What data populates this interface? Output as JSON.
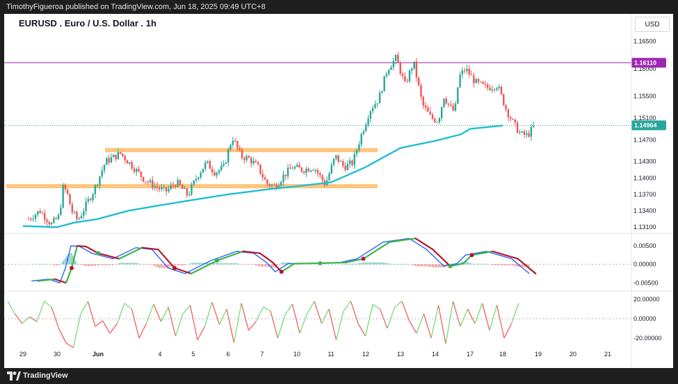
{
  "header": {
    "publisher_line": "TimothyFigueroa published on TradingView.com, Jun 18, 2025 09:49 UTC+8",
    "chart_title": "EURUSD . Euro / U.S. Dollar . 1h",
    "currency_button": "USD"
  },
  "footer": {
    "brand": "TradingView"
  },
  "colors": {
    "up": "#26a69a",
    "down": "#ef5350",
    "ma": "#1fbed3",
    "zone": "#ffc67d",
    "hline": "#9c27b0",
    "macd_line": "#2962ff",
    "signal_line": "#b2182b",
    "signal_up": "#3cb44b",
    "rsi_up": "#6bd96b",
    "rsi_down": "#ef5350"
  },
  "chart_data": [
    {
      "type": "candlestick",
      "title": "EURUSD . Euro / U.S. Dollar . 1h",
      "ylim": [
        1.13,
        1.1675
      ],
      "yticks": [
        "1.16500",
        "1.16000",
        "1.15500",
        "1.15100",
        "1.14700",
        "1.14300",
        "1.14000",
        "1.13700",
        "1.13400",
        "1.13100"
      ],
      "xticks": [
        "29",
        "30",
        "Jun",
        "4",
        "5",
        "6",
        "7",
        "10",
        "11",
        "12",
        "13",
        "14",
        "17",
        "18",
        "19",
        "20",
        "21"
      ],
      "price_labels": [
        {
          "value": "1.16110",
          "color": "#9c27b0"
        },
        {
          "value": "1.14964",
          "color": "#26a69a"
        }
      ],
      "horizontal_line": 1.1611,
      "current_price": 1.14964,
      "zones": [
        {
          "from": "Jun 2",
          "to": "Jun 11",
          "price": 1.1451
        },
        {
          "from": "May 29",
          "to": "Jun 11",
          "price": 1.1385
        }
      ],
      "close_path": [
        [
          "May 29",
          1.1325
        ],
        [
          "May 29",
          1.134
        ],
        [
          "May 29",
          1.1315
        ],
        [
          "May 30",
          1.133
        ],
        [
          "May 30",
          1.1385
        ],
        [
          "May 30",
          1.137
        ],
        [
          "May 30",
          1.134
        ],
        [
          "Jun 1",
          1.1322
        ],
        [
          "Jun 1",
          1.135
        ],
        [
          "Jun 1",
          1.1378
        ],
        [
          "Jun 2",
          1.143
        ],
        [
          "Jun 2",
          1.1445
        ],
        [
          "Jun 3",
          1.142
        ],
        [
          "Jun 3",
          1.1398
        ],
        [
          "Jun 3",
          1.1385
        ],
        [
          "Jun 4",
          1.1375
        ],
        [
          "Jun 4",
          1.1392
        ],
        [
          "Jun 4",
          1.1368
        ],
        [
          "Jun 5",
          1.1405
        ],
        [
          "Jun 5",
          1.1428
        ],
        [
          "Jun 5",
          1.141
        ],
        [
          "Jun 5",
          1.142
        ],
        [
          "Jun 6",
          1.1475
        ],
        [
          "Jun 6",
          1.144
        ],
        [
          "Jun 6",
          1.1435
        ],
        [
          "Jun 6",
          1.142
        ],
        [
          "Jun 7",
          1.139
        ],
        [
          "Jun 7",
          1.1385
        ],
        [
          "Jun 8",
          1.1405
        ],
        [
          "Jun 8",
          1.142
        ],
        [
          "Jun 10",
          1.1415
        ],
        [
          "Jun 10",
          1.142
        ],
        [
          "Jun 10",
          1.1388
        ],
        [
          "Jun 11",
          1.144
        ],
        [
          "Jun 11",
          1.142
        ],
        [
          "Jun 11",
          1.1428
        ],
        [
          "Jun 11",
          1.148
        ],
        [
          "Jun 12",
          1.1525
        ],
        [
          "Jun 12",
          1.1545
        ],
        [
          "Jun 12",
          1.16
        ],
        [
          "Jun 12",
          1.162
        ],
        [
          "Jun 13",
          1.157
        ],
        [
          "Jun 13",
          1.1612
        ],
        [
          "Jun 13",
          1.1535
        ],
        [
          "Jun 13",
          1.151
        ],
        [
          "Jun 14",
          1.1505
        ],
        [
          "Jun 14",
          1.155
        ],
        [
          "Jun 14",
          1.153
        ],
        [
          "Jun 15",
          1.152
        ],
        [
          "Jun 15",
          1.1585
        ],
        [
          "Jun 16",
          1.16
        ],
        [
          "Jun 17",
          1.1575
        ],
        [
          "Jun 17",
          1.1565
        ],
        [
          "Jun 17",
          1.157
        ],
        [
          "Jun 18",
          1.1525
        ],
        [
          "Jun 18",
          1.15
        ],
        [
          "Jun 18",
          1.148
        ],
        [
          "Jun 18",
          1.1478
        ],
        [
          "Jun 18",
          1.14964
        ]
      ],
      "ma_path": [
        [
          "May 29",
          1.1312
        ],
        [
          "May 30",
          1.131
        ],
        [
          "Jun 1",
          1.1318
        ],
        [
          "Jun 2",
          1.1325
        ],
        [
          "Jun 3",
          1.134
        ],
        [
          "Jun 4",
          1.135
        ],
        [
          "Jun 5",
          1.136
        ],
        [
          "Jun 6",
          1.137
        ],
        [
          "Jun 7",
          1.1378
        ],
        [
          "Jun 10",
          1.1385
        ],
        [
          "Jun 11",
          1.1392
        ],
        [
          "Jun 12",
          1.142
        ],
        [
          "Jun 13",
          1.1455
        ],
        [
          "Jun 14",
          1.1468
        ],
        [
          "Jun 16",
          1.148
        ],
        [
          "Jun 17",
          1.149
        ],
        [
          "Jun 18",
          1.1496
        ]
      ]
    },
    {
      "type": "line",
      "yticks": [
        "0.00500",
        "0.00000",
        "-0.00500"
      ],
      "ylim": [
        -0.007,
        0.008
      ],
      "series": [],
      "macd_path": [
        [
          "May 29",
          -0.0045
        ],
        [
          "May 29",
          -0.004
        ],
        [
          "May 30",
          -0.005
        ],
        [
          "May 30",
          -0.001
        ],
        [
          "May 30",
          0.005
        ],
        [
          "Jun 1",
          0.0048
        ],
        [
          "Jun 1",
          0.003
        ],
        [
          "Jun 2",
          0.0015
        ],
        [
          "Jun 3",
          0.0045
        ],
        [
          "Jun 3",
          0.004
        ],
        [
          "Jun 4",
          -0.001
        ],
        [
          "Jun 4",
          -0.0025
        ],
        [
          "Jun 5",
          0.001
        ],
        [
          "Jun 6",
          0.0035
        ],
        [
          "Jun 6",
          0.003
        ],
        [
          "Jun 7",
          0.0005
        ],
        [
          "Jun 7",
          -0.002
        ],
        [
          "Jun 8",
          0.0002
        ],
        [
          "Jun 10",
          0.0003
        ],
        [
          "Jun 11",
          0.0005
        ],
        [
          "Jun 11",
          0.0015
        ],
        [
          "Jun 12",
          0.006
        ],
        [
          "Jun 13",
          0.007
        ],
        [
          "Jun 13",
          0.004
        ],
        [
          "Jun 14",
          -0.0005
        ],
        [
          "Jun 15",
          0.0002
        ],
        [
          "Jun 16",
          0.0025
        ],
        [
          "Jun 17",
          0.0035
        ],
        [
          "Jun 18",
          0.0015
        ],
        [
          "Jun 18",
          -0.0025
        ]
      ]
    },
    {
      "type": "line",
      "yticks": [
        "20.00000",
        "0.00000",
        "-20.00000"
      ],
      "ylim": [
        -28,
        28
      ],
      "series": [],
      "values": [
        18,
        5,
        -5,
        2,
        -3,
        18,
        12,
        -10,
        -25,
        -30,
        5,
        18,
        -8,
        -2,
        -15,
        -5,
        16,
        10,
        -20,
        -5,
        15,
        -3,
        12,
        -18,
        5,
        14,
        -22,
        -8,
        17,
        -6,
        10,
        -25,
        16,
        -12,
        -3,
        12,
        8,
        -20,
        4,
        15,
        -15,
        5,
        18,
        -5,
        10,
        -22,
        8,
        18,
        -5,
        -18,
        15,
        10,
        -10,
        12,
        18,
        -2,
        -15,
        5,
        -20,
        14,
        -26,
        18,
        -8,
        10,
        -5,
        16,
        -12,
        14,
        -20,
        -5,
        16
      ]
    }
  ]
}
